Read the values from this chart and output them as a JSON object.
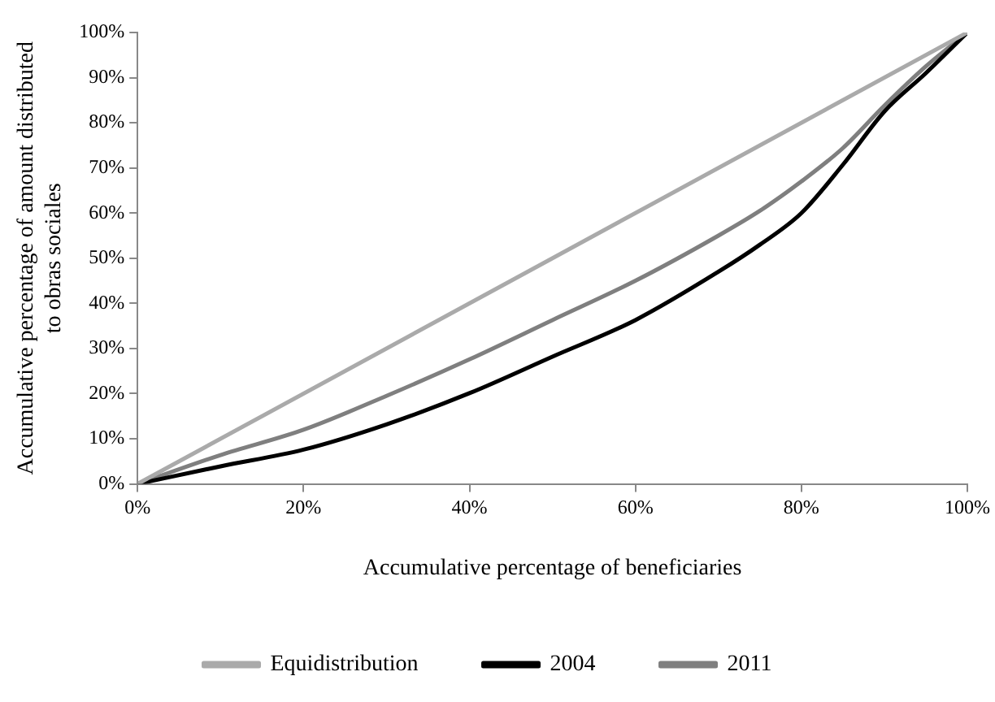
{
  "chart_data": {
    "type": "line",
    "xlabel": "Accumulative percentage of beneficiaries",
    "ylabel": "Accumulative percentage of amount distributed to obras sociales",
    "x": [
      0,
      10,
      20,
      30,
      40,
      50,
      60,
      70,
      75,
      80,
      85,
      90,
      95,
      100
    ],
    "series": [
      {
        "name": "Equidistribution",
        "color": "#aaaaaa",
        "x": [
          0,
          100
        ],
        "values": [
          0,
          100
        ]
      },
      {
        "name": "2004",
        "color": "#000000",
        "values": [
          0,
          3.9,
          7.6,
          13.2,
          20.1,
          28.2,
          36.3,
          47,
          53,
          60,
          70.7,
          82.5,
          91,
          100
        ]
      },
      {
        "name": "2011",
        "color": "#7f7f7f",
        "values": [
          0,
          6.4,
          12,
          19.5,
          27.6,
          36.3,
          45,
          55,
          60.5,
          67,
          74.4,
          83.8,
          92.5,
          100
        ]
      }
    ],
    "xlim": [
      0,
      100
    ],
    "ylim": [
      0,
      100
    ],
    "xticks": [
      {
        "value": 0,
        "label": "0%"
      },
      {
        "value": 20,
        "label": "20%"
      },
      {
        "value": 40,
        "label": "40%"
      },
      {
        "value": 60,
        "label": "60%"
      },
      {
        "value": 80,
        "label": "80%"
      },
      {
        "value": 100,
        "label": "100%"
      }
    ],
    "yticks": [
      {
        "value": 0,
        "label": "0%"
      },
      {
        "value": 10,
        "label": "10%"
      },
      {
        "value": 20,
        "label": "20%"
      },
      {
        "value": 30,
        "label": "30%"
      },
      {
        "value": 40,
        "label": "40%"
      },
      {
        "value": 50,
        "label": "50%"
      },
      {
        "value": 60,
        "label": "60%"
      },
      {
        "value": 70,
        "label": "70%"
      },
      {
        "value": 80,
        "label": "80%"
      },
      {
        "value": 90,
        "label": "90%"
      },
      {
        "value": 100,
        "label": "100%"
      }
    ],
    "grid": false,
    "legend": "bottom",
    "marker": "none",
    "line_style": "solid"
  }
}
